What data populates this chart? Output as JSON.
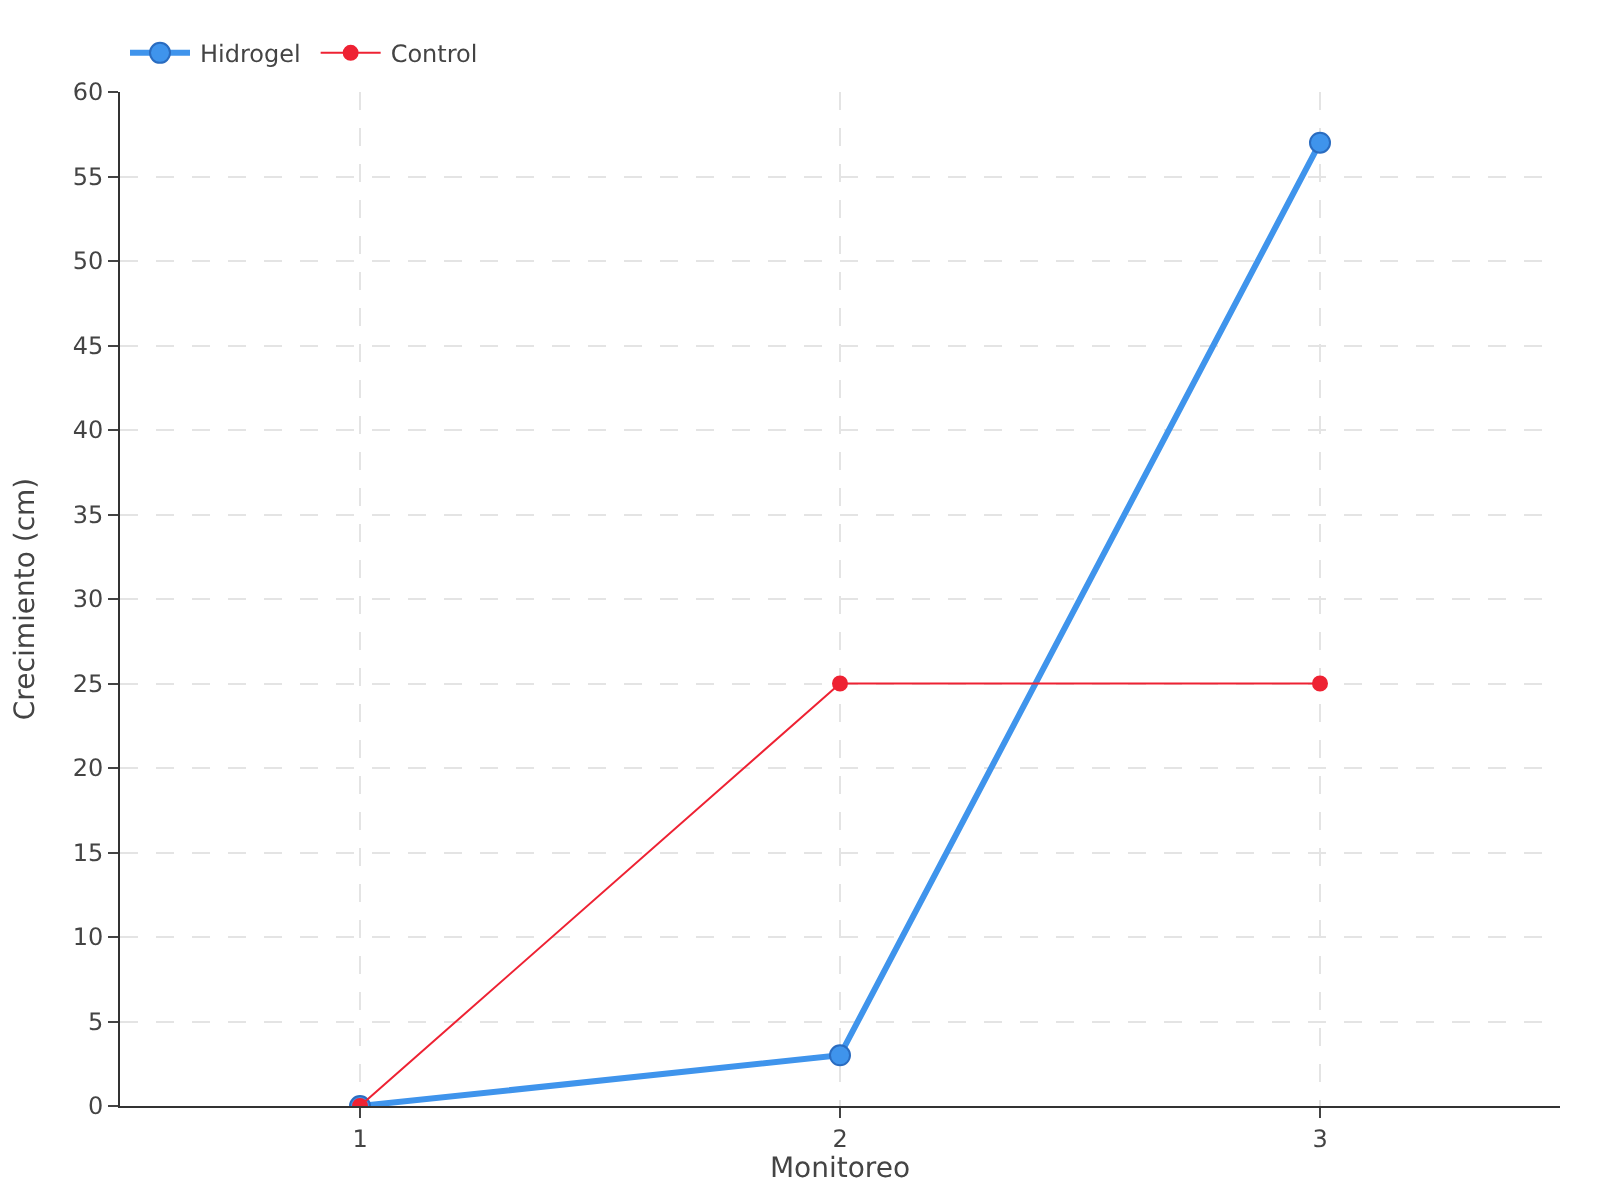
{
  "chart_data": {
    "type": "line",
    "xlabel": "Monitoreo",
    "ylabel": "Crecimiento (cm)",
    "x": [
      1,
      2,
      3
    ],
    "series": [
      {
        "name": "Hidrogel",
        "color": "#3f94ec",
        "values": [
          0,
          3,
          57
        ]
      },
      {
        "name": "Control",
        "color": "#ee2233",
        "values": [
          0,
          25,
          25
        ]
      }
    ],
    "xlim": [
      0.5,
      3.5
    ],
    "xticks": [
      1,
      2,
      3
    ],
    "ylim": [
      0,
      60
    ],
    "yticks": [
      0,
      5,
      10,
      15,
      20,
      25,
      30,
      35,
      40,
      45,
      50,
      55,
      60
    ],
    "grid": true,
    "legend": "top left",
    "marker": "circle",
    "line_style": "solid"
  }
}
